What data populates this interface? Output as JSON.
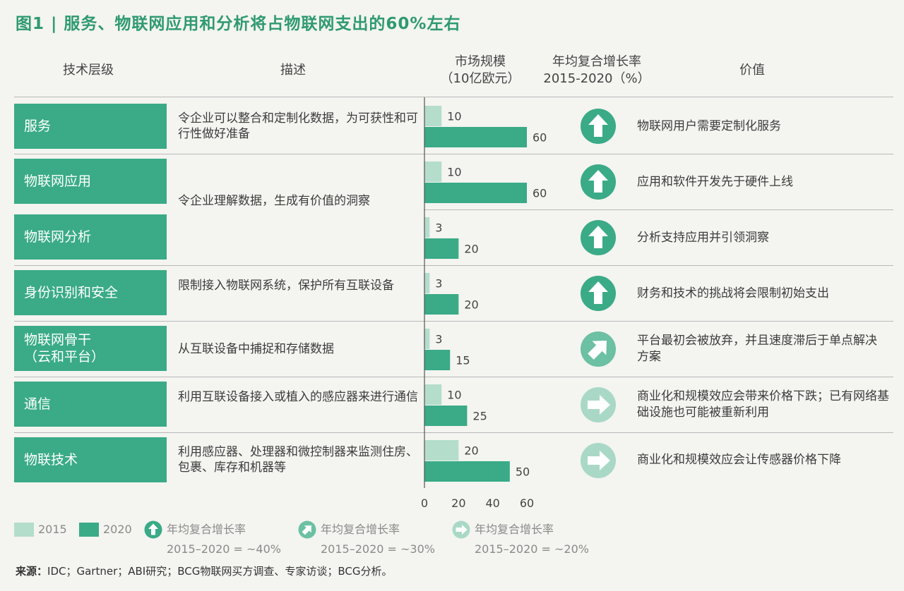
{
  "title": "图1 | 服务、物联网应用和分析将占物联网支出的60%左右",
  "headers": {
    "layer": "技术层级",
    "desc": "描述",
    "market_line1": "市场规模",
    "market_line2": "（10亿欧元）",
    "cagr_line1": "年均复合增长率",
    "cagr_line2": "2015-2020（%）",
    "value": "价值"
  },
  "rows": [
    {
      "layer": "服务",
      "desc": "令企业可以整合和定制化数据，为可获性和可行性做好准备",
      "value": "物联网用户需要定制化服务",
      "arrow": "up-arrow-40"
    },
    {
      "layer": "物联网应用",
      "desc": "",
      "value": "应用和软件开发先于硬件上线",
      "arrow": "up-arrow-40"
    },
    {
      "layer": "物联网分析",
      "desc": "",
      "value": "分析支持应用并引领洞察",
      "arrow": "up-arrow-40"
    },
    {
      "layer": "身份识别和安全",
      "desc": "限制接入物联网系统，保护所有互联设备",
      "value": "财务和技术的挑战将会限制初始支出",
      "arrow": "up-arrow-40"
    },
    {
      "layer": "物联网骨干",
      "layer_line2": "（云和平台）",
      "desc": "从互联设备中捕捉和存储数据",
      "value": "平台最初会被放弃，并且速度滞后于单点解决方案",
      "arrow": "diagonal-arrow-30"
    },
    {
      "layer": "通信",
      "desc": "利用互联设备接入或植入的感应器来进行通信",
      "value": "商业化和规模效应会带来价格下跌；已有网络基础设施也可能被重新利用",
      "arrow": "right-arrow-20"
    },
    {
      "layer": "物联技术",
      "desc": "利用感应器、处理器和微控制器来监测住房、包裹、库存和机器等",
      "value": "商业化和规模效应会让传感器价格下降",
      "arrow": "right-arrow-20"
    }
  ],
  "merged_desc": "令企业理解数据，生成有价值的洞察",
  "chart_data": {
    "type": "bar",
    "orientation": "horizontal",
    "categories": [
      "服务",
      "物联网应用",
      "物联网分析",
      "身份识别和安全",
      "物联网骨干（云和平台）",
      "通信",
      "物联技术"
    ],
    "series": [
      {
        "name": "2015",
        "values": [
          10,
          10,
          3,
          3,
          3,
          10,
          20
        ],
        "color": "#b4ddcc"
      },
      {
        "name": "2020",
        "values": [
          60,
          60,
          20,
          20,
          15,
          25,
          50
        ],
        "color": "#3aab86"
      }
    ],
    "xlim": [
      0,
      60
    ],
    "xticks": [
      "0",
      "20",
      "40",
      "60"
    ]
  },
  "legend": {
    "s2015": "2015",
    "s2020": "2020",
    "cagr_label": "年均复合增长率",
    "cagr_40": "2015–2020 = ~40%",
    "cagr_30": "2015–2020 = ~30%",
    "cagr_20": "2015–2020 = ~20%"
  },
  "source": {
    "label": "来源：",
    "text": "IDC；Gartner；ABI研究；BCG物联网买方调查、专家访谈；BCG分析。"
  },
  "colors": {
    "brand": "#3aab86",
    "light": "#b4ddcc",
    "title": "#2f9a72",
    "icon_40": "#3aab86",
    "icon_30": "#6cc0a3",
    "icon_20": "#a9d9c6"
  }
}
